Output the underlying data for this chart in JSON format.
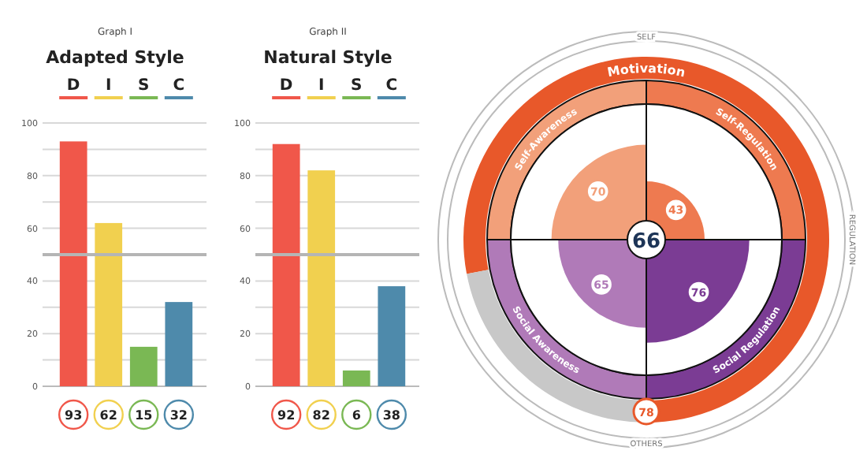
{
  "chart_data": [
    {
      "type": "bar",
      "subtitle": "Graph I",
      "title": "Adapted Style",
      "categories": [
        "D",
        "I",
        "S",
        "C"
      ],
      "values": [
        93,
        62,
        15,
        32
      ],
      "colors": [
        "#f0574a",
        "#f1d04f",
        "#7ab854",
        "#4e8aab"
      ],
      "ylim": [
        0,
        100
      ],
      "yticks": [
        0,
        {
          "value": 10,
          "label": null
        },
        20,
        {
          "value": 30,
          "label": null
        },
        40,
        {
          "value": 50,
          "label": null
        },
        60,
        {
          "value": 70,
          "label": null
        },
        80,
        {
          "value": 90,
          "label": null
        },
        100
      ],
      "grid": true,
      "data_labels": true,
      "ref_lines": [
        {
          "axis": "y",
          "value": 50,
          "color": "#b5b5b5"
        }
      ]
    },
    {
      "type": "bar",
      "subtitle": "Graph II",
      "title": "Natural Style",
      "categories": [
        "D",
        "I",
        "S",
        "C"
      ],
      "values": [
        92,
        82,
        6,
        38
      ],
      "colors": [
        "#f0574a",
        "#f1d04f",
        "#7ab854",
        "#4e8aab"
      ],
      "ylim": [
        0,
        100
      ],
      "yticks": [
        0,
        {
          "value": 10,
          "label": null
        },
        20,
        {
          "value": 30,
          "label": null
        },
        40,
        {
          "value": 50,
          "label": null
        },
        60,
        {
          "value": 70,
          "label": null
        },
        80,
        {
          "value": 90,
          "label": null
        },
        100
      ],
      "grid": true,
      "data_labels": true,
      "ref_lines": [
        {
          "axis": "y",
          "value": 50,
          "color": "#b5b5b5"
        }
      ]
    },
    {
      "type": "other",
      "title": "Motivation",
      "categories": [
        "Self-Regulation",
        "Social Regulation",
        "Social Awareness",
        "Self-Awareness"
      ],
      "values": [
        43,
        76,
        65,
        70
      ],
      "colors": [
        "#ee7a50",
        "#7b3c94",
        "#b07ab8",
        "#f2a07a"
      ],
      "data_labels": true,
      "annotations": [
        "66",
        "78",
        "SELF",
        "REGULATION",
        "OTHERS"
      ]
    }
  ]
}
